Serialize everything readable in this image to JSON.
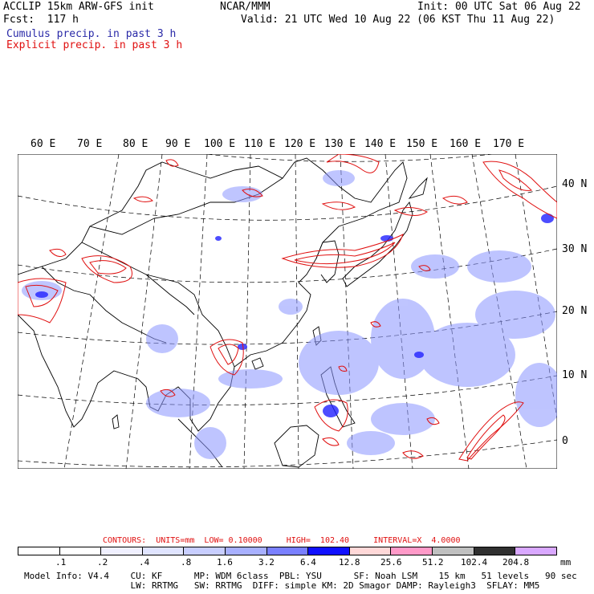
{
  "header": {
    "line1_left": "ACCLIP 15km ARW-GFS init",
    "line1_mid": "NCAR/MMM",
    "line1_right": "Init: 00 UTC Sat 06 Aug 22",
    "line2_left": "Fcst:  117 h",
    "line2_right": "Valid: 21 UTC Wed 10 Aug 22 (06 KST Thu 11 Aug 22)",
    "line3": "Cumulus precip. in past 3 h",
    "line4": "Explicit precip. in past 3 h",
    "cumulus_color": "#2a2aa8",
    "explicit_color": "#e01010"
  },
  "map": {
    "lon_labels": [
      "60 E",
      "70 E",
      "80 E",
      "90 E",
      "100 E",
      "110 E",
      "120 E",
      "130 E",
      "140 E",
      "150 E",
      "160 E",
      "170 E"
    ],
    "lat_labels": [
      "40 N",
      "30 N",
      "20 N",
      "10 N",
      "0"
    ]
  },
  "legend": {
    "contours_label": "CONTOURS:  UNITS=mm  LOW= 0.10000     HIGH=  102.40     INTERVAL=X  4.0000",
    "ticks": [
      ".1",
      ".2",
      ".4",
      ".8",
      "1.6",
      "3.2",
      "6.4",
      "12.8",
      "25.6",
      "51.2",
      "102.4",
      "204.8"
    ],
    "units": "mm",
    "colors": [
      "#ffffff",
      "#ffffff",
      "#f0f0ff",
      "#e0e4ff",
      "#c8ceff",
      "#a8b0ff",
      "#7a80ff",
      "#1010ff",
      "#ffd8d8",
      "#ff9ac8",
      "#c0c0c0",
      "#303030",
      "#d9a8ff"
    ]
  },
  "model_info": {
    "line1": "Model Info: V4.4    CU: KF      MP: WDM 6class  PBL: YSU      SF: Noah LSM    15 km   51 levels   90 sec",
    "line2": "                    LW: RRTMG   SW: RRTMG  DIFF: simple KM: 2D Smagor DAMP: Rayleigh3  SFLAY: MM5"
  }
}
